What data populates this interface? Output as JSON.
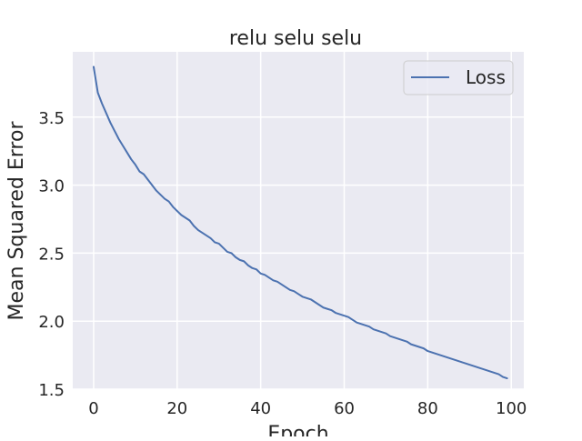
{
  "chart_data": {
    "type": "line",
    "title": "relu selu selu",
    "xlabel": "Epoch",
    "ylabel": "Mean Squared Error",
    "xlim": [
      -5,
      103
    ],
    "ylim": [
      1.5,
      3.98
    ],
    "xticks": [
      0,
      20,
      40,
      60,
      80,
      100
    ],
    "yticks": [
      1.5,
      2.0,
      2.5,
      3.0,
      3.5
    ],
    "grid": true,
    "legend": {
      "placement": "top-right",
      "entries": [
        "Loss"
      ]
    },
    "series": [
      {
        "name": "Loss",
        "color": "#4c72b0",
        "x": [
          0,
          1,
          2,
          3,
          4,
          5,
          6,
          7,
          8,
          9,
          10,
          11,
          12,
          13,
          14,
          15,
          16,
          17,
          18,
          19,
          20,
          21,
          22,
          23,
          24,
          25,
          26,
          27,
          28,
          29,
          30,
          31,
          32,
          33,
          34,
          35,
          36,
          37,
          38,
          39,
          40,
          41,
          42,
          43,
          44,
          45,
          46,
          47,
          48,
          49,
          50,
          51,
          52,
          53,
          54,
          55,
          56,
          57,
          58,
          59,
          60,
          61,
          62,
          63,
          64,
          65,
          66,
          67,
          68,
          69,
          70,
          71,
          72,
          73,
          74,
          75,
          76,
          77,
          78,
          79,
          80,
          81,
          82,
          83,
          84,
          85,
          86,
          87,
          88,
          89,
          90,
          91,
          92,
          93,
          94,
          95,
          96,
          97,
          98,
          99
        ],
        "values": [
          3.87,
          3.68,
          3.6,
          3.53,
          3.46,
          3.4,
          3.34,
          3.29,
          3.24,
          3.19,
          3.15,
          3.1,
          3.08,
          3.04,
          3.0,
          2.96,
          2.93,
          2.9,
          2.88,
          2.84,
          2.81,
          2.78,
          2.76,
          2.74,
          2.7,
          2.67,
          2.65,
          2.63,
          2.61,
          2.58,
          2.57,
          2.54,
          2.51,
          2.5,
          2.47,
          2.45,
          2.44,
          2.41,
          2.39,
          2.38,
          2.35,
          2.34,
          2.32,
          2.3,
          2.29,
          2.27,
          2.25,
          2.23,
          2.22,
          2.2,
          2.18,
          2.17,
          2.16,
          2.14,
          2.12,
          2.1,
          2.09,
          2.08,
          2.06,
          2.05,
          2.04,
          2.03,
          2.01,
          1.99,
          1.98,
          1.97,
          1.96,
          1.94,
          1.93,
          1.92,
          1.91,
          1.89,
          1.88,
          1.87,
          1.86,
          1.85,
          1.83,
          1.82,
          1.81,
          1.8,
          1.78,
          1.77,
          1.76,
          1.75,
          1.74,
          1.73,
          1.72,
          1.71,
          1.7,
          1.69,
          1.68,
          1.67,
          1.66,
          1.65,
          1.64,
          1.63,
          1.62,
          1.61,
          1.59,
          1.58
        ]
      }
    ]
  }
}
